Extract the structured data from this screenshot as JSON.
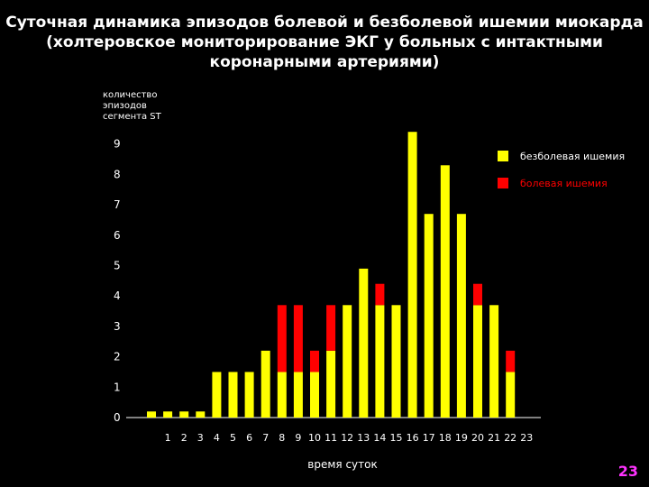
{
  "title": {
    "line1": "Суточная динамика эпизодов болевой и безболевой ишемии миокарда",
    "line2": "(холтеровское мониторирование ЭКГ у больных с интактными",
    "line3": "коронарными артериями)"
  },
  "slide_number": "23",
  "colors": {
    "yellow": "#ffff00",
    "red": "#ff0000",
    "background": "#000000"
  },
  "chart_data": {
    "type": "bar",
    "stacked": true,
    "ylabel": "количество эпизодов сегмента ST",
    "ylabel_lines": [
      "количество",
      "эпизодов",
      "сегмента ST"
    ],
    "xlabel": "время суток",
    "ylim": [
      0,
      9.4
    ],
    "yticks": [
      "0",
      "1",
      "2",
      "3",
      "4",
      "5",
      "6",
      "7",
      "8",
      "9"
    ],
    "xtick_labels": [
      "1",
      "2",
      "3",
      "4",
      "5",
      "6",
      "7",
      "8",
      "9",
      "10",
      "11",
      "12",
      "13",
      "14",
      "15",
      "16",
      "17",
      "18",
      "19",
      "20",
      "21",
      "22",
      "23"
    ],
    "categories": [
      "0",
      "1",
      "2",
      "3",
      "4",
      "5",
      "6",
      "7",
      "8",
      "9",
      "10",
      "11",
      "12",
      "13",
      "14",
      "15",
      "16",
      "17",
      "18",
      "19",
      "20",
      "21",
      "22",
      "23"
    ],
    "series": [
      {
        "name": "безболевая ишемия",
        "color": "#ffff00",
        "values": [
          0.2,
          0.2,
          0.2,
          0.2,
          1.5,
          1.5,
          1.5,
          2.2,
          1.5,
          1.5,
          1.5,
          2.2,
          3.7,
          4.9,
          3.7,
          3.7,
          9.4,
          6.7,
          8.3,
          6.7,
          3.7,
          3.7,
          1.5,
          0
        ]
      },
      {
        "name": "болевая ишемия",
        "color": "#ff0000",
        "values": [
          0,
          0,
          0,
          0,
          0,
          0,
          0,
          0,
          2.2,
          2.2,
          0.7,
          1.5,
          0,
          0,
          0.7,
          0,
          0,
          0,
          0,
          0,
          0.7,
          0,
          0.7,
          0
        ]
      }
    ],
    "legend": "top-right"
  }
}
